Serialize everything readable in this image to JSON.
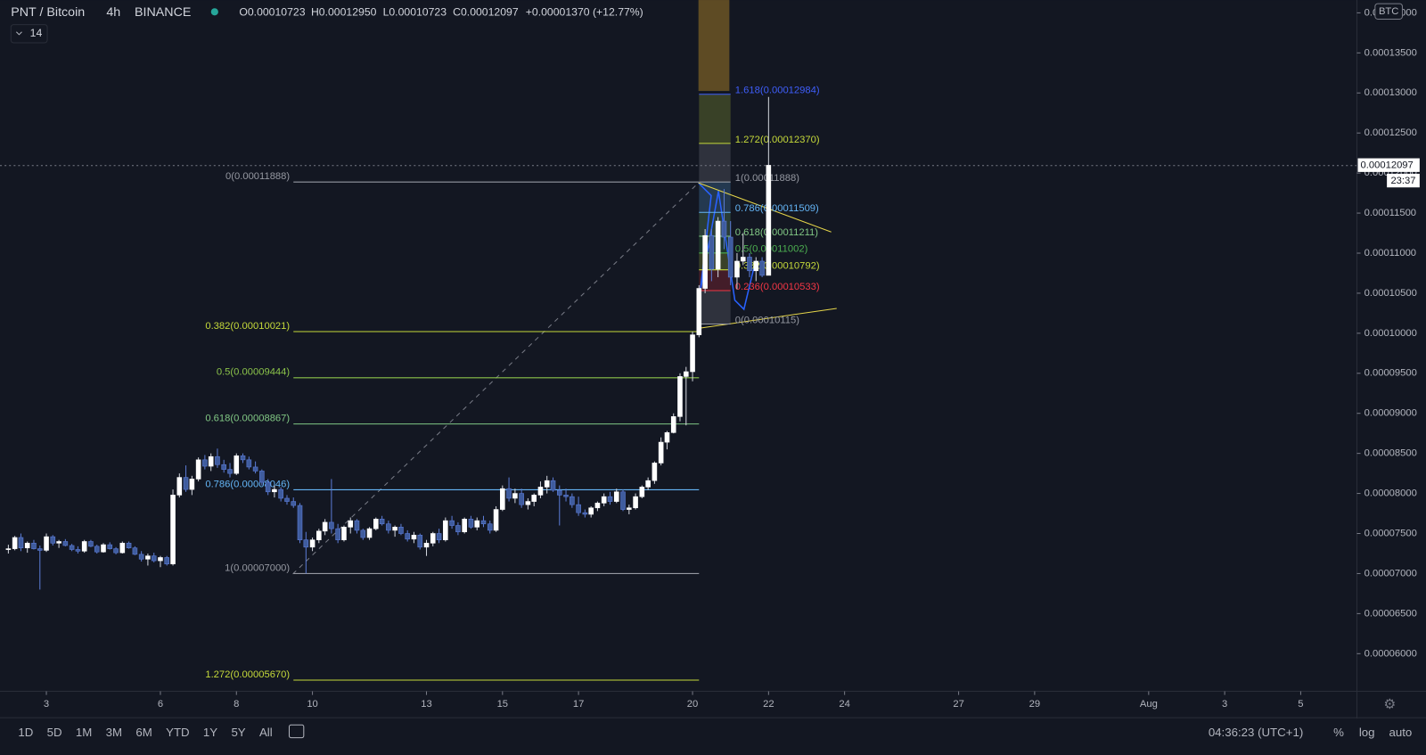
{
  "header": {
    "symbol": "PNT / Bitcoin",
    "interval": "4h",
    "exchange": "BINANCE",
    "ohlc": [
      "O0.00010723",
      "H0.00012950",
      "L0.00010723",
      "C0.00012097"
    ],
    "change": "+0.00001370 (+12.77%)",
    "indicator": "14",
    "currency": "BTC",
    "countdown": "23:37"
  },
  "chart_data": {
    "type": "candlestick",
    "up_color": "#ffffff",
    "down_color": "#3f5c9e",
    "x": [
      2,
      2.17,
      2.33,
      2.5,
      2.67,
      2.83,
      3,
      3.17,
      3.33,
      3.5,
      3.67,
      3.83,
      4,
      4.17,
      4.33,
      4.5,
      4.67,
      4.83,
      5,
      5.17,
      5.33,
      5.5,
      5.67,
      5.83,
      6,
      6.17,
      6.33,
      6.5,
      6.67,
      6.83,
      7,
      7.17,
      7.33,
      7.5,
      7.67,
      7.83,
      8,
      8.17,
      8.33,
      8.5,
      8.67,
      8.83,
      9,
      9.17,
      9.33,
      9.5,
      9.67,
      9.83,
      10,
      10.17,
      10.33,
      10.5,
      10.67,
      10.83,
      11,
      11.17,
      11.33,
      11.5,
      11.67,
      11.83,
      12,
      12.17,
      12.33,
      12.5,
      12.67,
      12.83,
      13,
      13.17,
      13.33,
      13.5,
      13.67,
      13.83,
      14,
      14.17,
      14.33,
      14.5,
      14.67,
      14.83,
      15,
      15.17,
      15.33,
      15.5,
      15.67,
      15.83,
      16,
      16.17,
      16.33,
      16.5,
      16.67,
      16.83,
      17,
      17.17,
      17.33,
      17.5,
      17.67,
      17.83,
      18,
      18.17,
      18.33,
      18.5,
      18.67,
      18.83,
      19,
      19.17,
      19.33,
      19.5,
      19.67,
      19.83,
      20,
      20.17,
      20.33,
      20.5,
      20.67,
      20.83,
      21,
      21.17,
      21.33,
      21.5,
      21.67,
      21.83,
      22
    ],
    "open": [
      7.3e-05,
      7.31e-05,
      7.45e-05,
      7.32e-05,
      7.38e-05,
      7.31e-05,
      7.29e-05,
      7.46e-05,
      7.38e-05,
      7.4e-05,
      7.35e-05,
      7.3e-05,
      7.28e-05,
      7.4e-05,
      7.34e-05,
      7.27e-05,
      7.36e-05,
      7.31e-05,
      7.26e-05,
      7.38e-05,
      7.32e-05,
      7.24e-05,
      7.18e-05,
      7.22e-05,
      7.16e-05,
      7.2e-05,
      7.12e-05,
      7.98e-05,
      8.2e-05,
      8.05e-05,
      8.18e-05,
      8.42e-05,
      8.34e-05,
      8.46e-05,
      8.36e-05,
      8.3e-05,
      8.25e-05,
      8.47e-05,
      8.42e-05,
      8.33e-05,
      8.28e-05,
      8.14e-05,
      8.02e-05,
      8.05e-05,
      7.94e-05,
      7.9e-05,
      7.85e-05,
      7.42e-05,
      7.33e-05,
      7.42e-05,
      7.53e-05,
      7.64e-05,
      7.56e-05,
      7.42e-05,
      7.58e-05,
      7.66e-05,
      7.54e-05,
      7.45e-05,
      7.56e-05,
      7.68e-05,
      7.62e-05,
      7.54e-05,
      7.58e-05,
      7.5e-05,
      7.43e-05,
      7.48e-05,
      7.33e-05,
      7.38e-05,
      7.5e-05,
      7.42e-05,
      7.66e-05,
      7.6e-05,
      7.52e-05,
      7.68e-05,
      7.58e-05,
      7.66e-05,
      7.62e-05,
      7.54e-05,
      7.8e-05,
      8.06e-05,
      7.94e-05,
      8e-05,
      7.86e-05,
      7.9e-05,
      7.98e-05,
      8.08e-05,
      8.16e-05,
      8.04e-05,
      7.98e-05,
      7.96e-05,
      7.86e-05,
      7.76e-05,
      7.74e-05,
      7.82e-05,
      7.88e-05,
      7.96e-05,
      7.9e-05,
      8.02e-05,
      7.8e-05,
      7.82e-05,
      7.96e-05,
      8.08e-05,
      8.16e-05,
      8.38e-05,
      8.64e-05,
      8.76e-05,
      8.96e-05,
      9.46e-05,
      9.52e-05,
      9.98e-05,
      0.0001056,
      0.0001122,
      0.000108,
      0.000114,
      0.000112,
      0.000107,
      0.000109,
      0.0001095,
      0.0001078,
      0.000109,
      0.00010723
    ],
    "high": [
      7.36e-05,
      7.47e-05,
      7.5e-05,
      7.4e-05,
      7.42e-05,
      7.35e-05,
      7.5e-05,
      7.48e-05,
      7.42e-05,
      7.43e-05,
      7.37e-05,
      7.34e-05,
      7.42e-05,
      7.42e-05,
      7.36e-05,
      7.38e-05,
      7.39e-05,
      7.33e-05,
      7.4e-05,
      7.4e-05,
      7.34e-05,
      7.28e-05,
      7.25e-05,
      7.26e-05,
      7.22e-05,
      7.22e-05,
      8.05e-05,
      8.25e-05,
      8.35e-05,
      8.22e-05,
      8.45e-05,
      8.48e-05,
      8.5e-05,
      8.56e-05,
      8.42e-05,
      8.38e-05,
      8.5e-05,
      8.5e-05,
      8.46e-05,
      8.4e-05,
      8.3e-05,
      8.18e-05,
      8.1e-05,
      8.08e-05,
      7.98e-05,
      7.95e-05,
      7.88e-05,
      7.52e-05,
      7.45e-05,
      7.56e-05,
      7.68e-05,
      8.18e-05,
      7.62e-05,
      7.6e-05,
      7.7e-05,
      7.68e-05,
      7.56e-05,
      7.58e-05,
      7.7e-05,
      7.72e-05,
      7.66e-05,
      7.6e-05,
      7.62e-05,
      7.54e-05,
      7.52e-05,
      7.5e-05,
      7.42e-05,
      7.52e-05,
      7.56e-05,
      7.7e-05,
      7.72e-05,
      7.64e-05,
      7.7e-05,
      7.72e-05,
      7.7e-05,
      7.72e-05,
      7.66e-05,
      7.84e-05,
      8.1e-05,
      8.2e-05,
      8.06e-05,
      8.06e-05,
      7.94e-05,
      8e-05,
      8.15e-05,
      8.22e-05,
      8.2e-05,
      8.1e-05,
      8.06e-05,
      8e-05,
      7.96e-05,
      7.8e-05,
      7.84e-05,
      7.9e-05,
      8e-05,
      8.02e-05,
      8.06e-05,
      8.05e-05,
      7.86e-05,
      8e-05,
      8.1e-05,
      8.2e-05,
      8.4e-05,
      8.7e-05,
      8.78e-05,
      9e-05,
      9.5e-05,
      9.58e-05,
      0.0001002,
      0.000106,
      0.000113,
      0.000113,
      0.0001145,
      0.000118,
      0.000114,
      0.00011,
      0.0001125,
      0.00011,
      0.0001095,
      0.0001095,
      0.0001295
    ],
    "low": [
      7.25e-05,
      7.29e-05,
      7.28e-05,
      7.26e-05,
      7.3e-05,
      6.8e-05,
      7.27e-05,
      7.35e-05,
      7.32e-05,
      7.34e-05,
      7.28e-05,
      7.25e-05,
      7.26e-05,
      7.33e-05,
      7.25e-05,
      7.26e-05,
      7.3e-05,
      7.24e-05,
      7.25e-05,
      7.31e-05,
      7.23e-05,
      7.15e-05,
      7.1e-05,
      7.14e-05,
      7.08e-05,
      7.1e-05,
      7.1e-05,
      7.95e-05,
      8.02e-05,
      7.98e-05,
      8.15e-05,
      8.3e-05,
      8.28e-05,
      8.32e-05,
      8.26e-05,
      8.2e-05,
      8.23e-05,
      8.38e-05,
      8.3e-05,
      8.25e-05,
      8.1e-05,
      7.98e-05,
      7.95e-05,
      7.9e-05,
      7.86e-05,
      7.82e-05,
      7.38e-05,
      7e-05,
      7.28e-05,
      7.38e-05,
      7.48e-05,
      7.5e-05,
      7.38e-05,
      7.4e-05,
      7.5e-05,
      7.5e-05,
      7.42e-05,
      7.42e-05,
      7.54e-05,
      7.6e-05,
      7.5e-05,
      7.46e-05,
      7.48e-05,
      7.4e-05,
      7.38e-05,
      7.3e-05,
      7.22e-05,
      7.34e-05,
      7.38e-05,
      7.4e-05,
      7.56e-05,
      7.48e-05,
      7.5e-05,
      7.56e-05,
      7.54e-05,
      7.58e-05,
      7.5e-05,
      7.52e-05,
      7.78e-05,
      7.9e-05,
      7.88e-05,
      7.82e-05,
      7.8e-05,
      7.84e-05,
      7.94e-05,
      8e-05,
      8.02e-05,
      7.6e-05,
      7.9e-05,
      7.82e-05,
      7.72e-05,
      7.7e-05,
      7.7e-05,
      7.78e-05,
      7.84e-05,
      7.86e-05,
      7.88e-05,
      7.78e-05,
      7.74e-05,
      7.8e-05,
      7.94e-05,
      8.04e-05,
      8.12e-05,
      8.35e-05,
      8.55e-05,
      8.75e-05,
      8.9e-05,
      8.85e-05,
      9.4e-05,
      9.95e-05,
      0.000105,
      0.0001065,
      0.000107,
      0.0001105,
      0.000106,
      0.0001055,
      0.0001085,
      0.000107,
      0.0001065,
      0.000107,
      0.00010723
    ],
    "close": [
      7.31e-05,
      7.45e-05,
      7.32e-05,
      7.38e-05,
      7.31e-05,
      7.29e-05,
      7.46e-05,
      7.38e-05,
      7.4e-05,
      7.35e-05,
      7.3e-05,
      7.28e-05,
      7.4e-05,
      7.34e-05,
      7.27e-05,
      7.36e-05,
      7.31e-05,
      7.26e-05,
      7.38e-05,
      7.32e-05,
      7.24e-05,
      7.18e-05,
      7.22e-05,
      7.16e-05,
      7.2e-05,
      7.12e-05,
      7.98e-05,
      8.2e-05,
      8.05e-05,
      8.18e-05,
      8.42e-05,
      8.34e-05,
      8.46e-05,
      8.36e-05,
      8.3e-05,
      8.25e-05,
      8.47e-05,
      8.42e-05,
      8.33e-05,
      8.28e-05,
      8.14e-05,
      8.02e-05,
      8.05e-05,
      7.94e-05,
      7.9e-05,
      7.85e-05,
      7.42e-05,
      7.33e-05,
      7.42e-05,
      7.53e-05,
      7.64e-05,
      7.56e-05,
      7.42e-05,
      7.58e-05,
      7.66e-05,
      7.54e-05,
      7.45e-05,
      7.56e-05,
      7.68e-05,
      7.62e-05,
      7.54e-05,
      7.58e-05,
      7.5e-05,
      7.43e-05,
      7.48e-05,
      7.33e-05,
      7.38e-05,
      7.5e-05,
      7.42e-05,
      7.66e-05,
      7.6e-05,
      7.52e-05,
      7.68e-05,
      7.58e-05,
      7.66e-05,
      7.62e-05,
      7.54e-05,
      7.8e-05,
      8.06e-05,
      7.94e-05,
      8e-05,
      7.86e-05,
      7.9e-05,
      7.98e-05,
      8.08e-05,
      8.16e-05,
      8.04e-05,
      7.98e-05,
      7.96e-05,
      7.86e-05,
      7.76e-05,
      7.74e-05,
      7.82e-05,
      7.88e-05,
      7.96e-05,
      7.9e-05,
      8.02e-05,
      7.8e-05,
      7.82e-05,
      7.96e-05,
      8.08e-05,
      8.16e-05,
      8.38e-05,
      8.64e-05,
      8.76e-05,
      8.96e-05,
      9.46e-05,
      9.52e-05,
      9.98e-05,
      0.0001056,
      0.0001122,
      0.000108,
      0.000114,
      0.000112,
      0.000107,
      0.000109,
      0.0001095,
      0.0001078,
      0.000109,
      0.00010723,
      0.00012097
    ],
    "xlim": [
      1.78,
      37.43
    ],
    "xticks": [
      3,
      6,
      8,
      10,
      13,
      15,
      17,
      20,
      22,
      24,
      27,
      29,
      {
        "value": 32,
        "label": "Aug"
      },
      {
        "value": 34,
        "label": "3"
      },
      {
        "value": 36,
        "label": "5"
      }
    ],
    "ylim": [
      5.53e-05,
      0.0001416
    ],
    "yticks": [
      {
        "value": 6e-05,
        "label": "0.00006000"
      },
      {
        "value": 6.5e-05,
        "label": "0.00006500"
      },
      {
        "value": 7e-05,
        "label": "0.00007000"
      },
      {
        "value": 7.5e-05,
        "label": "0.00007500"
      },
      {
        "value": 8e-05,
        "label": "0.00008000"
      },
      {
        "value": 8.5e-05,
        "label": "0.00008500"
      },
      {
        "value": 9e-05,
        "label": "0.00009000"
      },
      {
        "value": 9.5e-05,
        "label": "0.00009500"
      },
      {
        "value": 0.0001,
        "label": "0.00010000"
      },
      {
        "value": 0.000105,
        "label": "0.00010500"
      },
      {
        "value": 0.00011,
        "label": "0.00011000"
      },
      {
        "value": 0.000115,
        "label": "0.00011500"
      },
      {
        "value": 0.00012,
        "label": "0.00012000"
      },
      {
        "value": 0.000125,
        "label": "0.00012500"
      },
      {
        "value": 0.00013,
        "label": "0.00013000"
      },
      {
        "value": 0.000135,
        "label": "0.00013500"
      },
      {
        "value": 0.00014,
        "label": "0.00014000"
      }
    ],
    "fib_retracements": [
      {
        "from": 9.5,
        "to": 20.17,
        "label_side": "left",
        "levels": [
          {
            "label": "0(0.00011888)",
            "value": 0.00011888,
            "color": "#9598a1"
          },
          {
            "label": "0.382(0.00010021)",
            "value": 0.00010021,
            "color": "#c5d93a"
          },
          {
            "label": "0.5(0.00009444)",
            "value": 9.444e-05,
            "color": "#8bc34a"
          },
          {
            "label": "0.618(0.00008867)",
            "value": 8.867e-05,
            "color": "#81c784"
          },
          {
            "label": "0.786(0.00008046)",
            "value": 8.046e-05,
            "color": "#64b5f6"
          },
          {
            "label": "1(0.00007000)",
            "value": 7e-05,
            "color": "#9598a1"
          },
          {
            "label": "1.272(0.00005670)",
            "value": 5.67e-05,
            "color": "#c5d93a"
          }
        ]
      },
      {
        "from": 20.17,
        "to": 21.0,
        "label_side": "right",
        "levels": [
          {
            "label": "1.618(0.00012984)",
            "value": 0.00012984,
            "color": "#3f5efb"
          },
          {
            "label": "1.272(0.00012370)",
            "value": 0.0001237,
            "color": "#c5d93a"
          },
          {
            "label": "1(0.00011888)",
            "value": 0.00011888,
            "color": "#9598a1"
          },
          {
            "label": "0.786(0.00011509)",
            "value": 0.00011509,
            "color": "#64b5f6"
          },
          {
            "label": "0.618(0.00011211)",
            "value": 0.00011211,
            "color": "#81c784"
          },
          {
            "label": "0.5(0.00011002)",
            "value": 0.00011002,
            "color": "#4caf50"
          },
          {
            "label": "0.382(0.00010792)",
            "value": 0.00010792,
            "color": "#c5d93a"
          },
          {
            "label": "0.236(0.00010533)",
            "value": 0.00010533,
            "color": "#f23645"
          },
          {
            "label": "0(0.00010115)",
            "value": 0.00010115,
            "color": "#9598a1"
          }
        ]
      }
    ]
  },
  "toolbar": {
    "ranges": [
      "1D",
      "5D",
      "1M",
      "3M",
      "6M",
      "YTD",
      "1Y",
      "5Y",
      "All"
    ],
    "clock": "04:36:23 (UTC+1)",
    "options": [
      "%",
      "log",
      "auto"
    ]
  }
}
